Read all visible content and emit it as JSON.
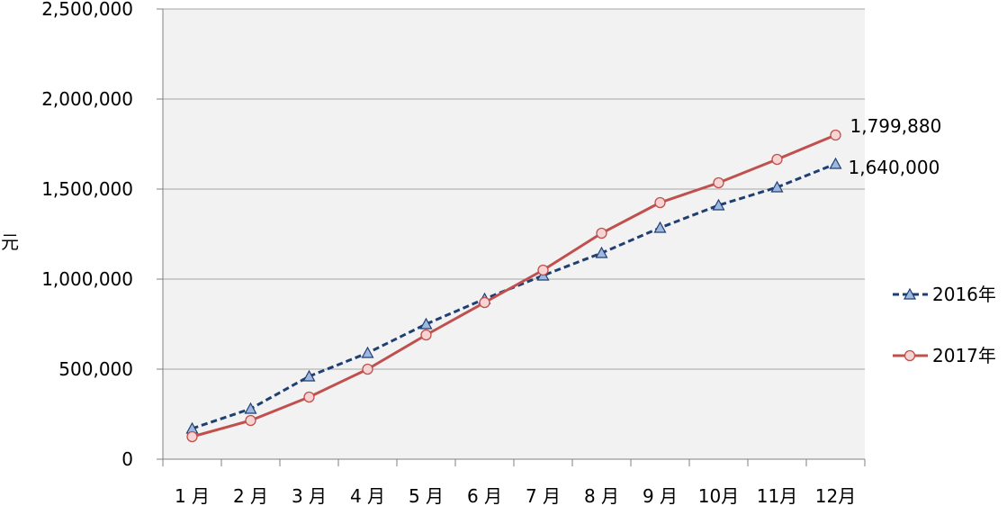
{
  "chart_data": {
    "type": "line",
    "ylabel": "元",
    "xlabel": "",
    "title": "",
    "ylim": [
      0,
      2500000
    ],
    "y_ticks": [
      0,
      500000,
      1000000,
      1500000,
      2000000,
      2500000
    ],
    "y_tick_labels": [
      "0",
      "500,000",
      "1,000,000",
      "1,500,000",
      "2,000,000",
      "2,500,000"
    ],
    "categories": [
      "1 月",
      "2 月",
      "3 月",
      "4 月",
      "5 月",
      "6 月",
      "7 月",
      "8 月",
      "9 月",
      "10月",
      "11月",
      "12月"
    ],
    "grid": true,
    "legend": "right",
    "plot_background": "#f2f2f2",
    "series": [
      {
        "name": "2016年",
        "color": "#1f3f73",
        "marker": "triangle",
        "marker_fill": "#9fb8e0",
        "dashed": true,
        "values": [
          170000,
          280000,
          460000,
          590000,
          750000,
          890000,
          1020000,
          1145000,
          1285000,
          1410000,
          1510000,
          1640000
        ],
        "end_label": "1,640,000"
      },
      {
        "name": "2017年",
        "color": "#c0504d",
        "marker": "circle",
        "marker_fill": "#f7d4d4",
        "dashed": false,
        "values": [
          125000,
          215000,
          345000,
          500000,
          690000,
          870000,
          1050000,
          1255000,
          1425000,
          1535000,
          1665000,
          1799880
        ],
        "end_label": "1,799,880"
      }
    ]
  }
}
